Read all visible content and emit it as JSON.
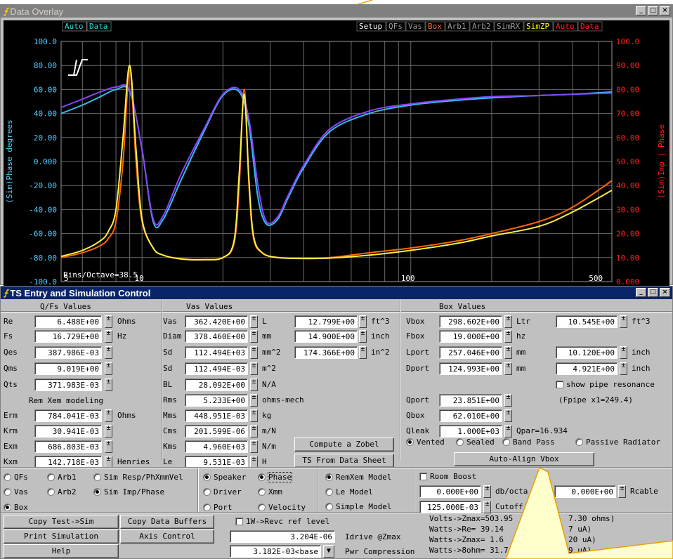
{
  "overlay": {
    "title": "Data Overlay",
    "logo": "JL",
    "top_tags_left": [
      "Auto",
      "Data"
    ],
    "top_tags_right": [
      {
        "label": "Setup",
        "color": "#ffffff"
      },
      {
        "label": "QFs",
        "color": "#a0a0a0"
      },
      {
        "label": "Vas",
        "color": "#a0a0a0"
      },
      {
        "label": "Box",
        "color": "#ff6633"
      },
      {
        "label": "Arb1",
        "color": "#a0a0a0"
      },
      {
        "label": "Arb2",
        "color": "#a0a0a0"
      },
      {
        "label": "SimRX",
        "color": "#a0a0a0"
      },
      {
        "label": "SimZP",
        "color": "#ffff00"
      },
      {
        "label": "Auto",
        "color": "#ff2020"
      },
      {
        "label": "Data",
        "color": "#ff2020"
      }
    ],
    "left_axis_label": "(Sim)Phase degrees",
    "right_axis_label": "(Sim)Imp | Phase",
    "bins_label": "Bins/Octave=38.5"
  },
  "chart_data": {
    "type": "line",
    "xscale": "log",
    "xlim": [
      5,
      560
    ],
    "x_ticks": [
      "5",
      "10",
      "100",
      "500"
    ],
    "ylim_left": [
      -100,
      100
    ],
    "left_ticks": [
      "100.0",
      "80.00",
      "60.00",
      "40.00",
      "20.00",
      "0.000",
      "-20.00",
      "-40.00",
      "-60.00",
      "-80.00",
      "-100.0"
    ],
    "ylim_right": [
      0,
      100
    ],
    "right_ticks": [
      "100.0",
      "90.00",
      "80.00",
      "70.00",
      "60.00",
      "50.00",
      "40.00",
      "30.00",
      "20.00",
      "10.00",
      "0.000"
    ],
    "grid": true,
    "series": [
      {
        "color": "#33bbee",
        "axis": "left",
        "x": [
          5,
          6,
          7,
          8,
          9,
          10,
          11,
          12,
          14,
          17,
          20,
          23,
          25,
          27,
          29,
          32,
          35,
          40,
          50,
          70,
          100,
          150,
          200,
          300,
          400,
          560
        ],
        "y": [
          40,
          47,
          54,
          60,
          58,
          10,
          -50,
          -48,
          -15,
          25,
          55,
          58,
          30,
          -30,
          -52,
          -48,
          -30,
          -5,
          25,
          40,
          47,
          51,
          53,
          55,
          56,
          58
        ]
      },
      {
        "color": "#8844ff",
        "axis": "left",
        "x": [
          5,
          6,
          7,
          8,
          9,
          10,
          11,
          12,
          14,
          17,
          20,
          23,
          25,
          27,
          29,
          32,
          35,
          40,
          50,
          70,
          100,
          150,
          200,
          300,
          400,
          560
        ],
        "y": [
          45,
          52,
          58,
          62,
          59,
          10,
          -48,
          -45,
          -10,
          27,
          56,
          60,
          35,
          -20,
          -50,
          -46,
          -28,
          -3,
          27,
          42,
          48,
          52,
          54,
          55,
          56,
          57
        ]
      },
      {
        "color": "#ff6600",
        "axis": "right",
        "x": [
          5,
          6,
          7,
          7.5,
          8,
          8.5,
          9,
          9.5,
          10,
          11,
          12,
          14,
          17,
          20,
          22,
          23,
          24,
          25,
          26,
          28,
          32,
          40,
          50,
          70,
          100,
          150,
          200,
          300,
          400,
          560
        ],
        "y": [
          10,
          12,
          15,
          18,
          25,
          50,
          88,
          50,
          25,
          14,
          11,
          9.5,
          9.2,
          10,
          16,
          40,
          80,
          40,
          18,
          12,
          10,
          9.8,
          10,
          12,
          14,
          17,
          20,
          25,
          31,
          42
        ]
      },
      {
        "color": "#ffee44",
        "axis": "right",
        "x": [
          5,
          6,
          7,
          7.5,
          8,
          8.5,
          9,
          9.5,
          10,
          11,
          12,
          14,
          17,
          20,
          22,
          23,
          24,
          25,
          26,
          28,
          32,
          40,
          50,
          70,
          100,
          150,
          200,
          300,
          400,
          560
        ],
        "y": [
          10.5,
          13,
          17,
          21,
          30,
          60,
          90,
          55,
          26,
          14,
          11,
          9.4,
          9.1,
          10,
          17,
          45,
          78,
          42,
          19,
          12,
          10,
          9.6,
          9.8,
          11,
          13,
          16,
          19,
          23,
          29,
          38
        ]
      }
    ]
  },
  "ts": {
    "title": "TS Entry and Simulation Control",
    "logo": "JL",
    "section_qfs": "Q/Fs Values",
    "section_vas": "Vas Values",
    "section_box": "Box Values",
    "col1": [
      {
        "label": "Re",
        "value": "6.488E+00",
        "unit": "Ohms"
      },
      {
        "label": "Fs",
        "value": "16.729E+00",
        "unit": "Hz"
      },
      {
        "label": "Qes",
        "value": "387.986E-03",
        "unit": ""
      },
      {
        "label": "Qms",
        "value": "9.019E+00",
        "unit": ""
      },
      {
        "label": "Qts",
        "value": "371.983E-03",
        "unit": ""
      }
    ],
    "rem_xem_heading": "Rem Xem modeling",
    "col1b": [
      {
        "label": "Erm",
        "value": "784.041E-03",
        "unit": "Ohms"
      },
      {
        "label": "Krm",
        "value": "30.941E-03",
        "unit": ""
      },
      {
        "label": "Exm",
        "value": "686.803E-03",
        "unit": ""
      },
      {
        "label": "Kxm",
        "value": "142.718E-03",
        "unit": "Henries"
      }
    ],
    "col2": [
      {
        "label": "Vas",
        "value": "362.420E+00",
        "unit": "L"
      },
      {
        "label": "Diam",
        "value": "378.460E+00",
        "unit": "mm"
      },
      {
        "label": "Sd",
        "value": "112.494E+03",
        "unit": "mm^2"
      },
      {
        "label": "Sd",
        "value": "112.494E-03",
        "unit": "m^2"
      },
      {
        "label": "BL",
        "value": "28.092E+00",
        "unit": "N/A"
      },
      {
        "label": "Rms",
        "value": "5.233E+00",
        "unit": "ohms-mech"
      },
      {
        "label": "Mms",
        "value": "448.951E-03",
        "unit": "kg"
      },
      {
        "label": "Cms",
        "value": "201.599E-06",
        "unit": "m/N"
      },
      {
        "label": "Kms",
        "value": "4.960E+03",
        "unit": "N/m"
      },
      {
        "label": "Le",
        "value": "9.531E-03",
        "unit": "H"
      }
    ],
    "col3": [
      {
        "value": "12.799E+00",
        "unit": "ft^3"
      },
      {
        "value": "14.900E+00",
        "unit": "inch"
      },
      {
        "value": "174.366E+00",
        "unit": "in^2"
      }
    ],
    "btn_zobel": "Compute a Zobel",
    "btn_ts_sheet": "TS From Data Sheet",
    "col4": [
      {
        "label": "Vbox",
        "value": "298.602E+00",
        "unit": "Ltr"
      },
      {
        "label": "Fbox",
        "value": "19.000E+00",
        "unit": "hz"
      },
      {
        "label": "Lport",
        "value": "257.046E+00",
        "unit": "mm"
      },
      {
        "label": "Dport",
        "value": "124.993E+00",
        "unit": "mm"
      }
    ],
    "col4b": [
      {
        "label": "Qport",
        "value": "23.851E+00",
        "unit": ""
      },
      {
        "label": "Qbox",
        "value": "62.010E+00",
        "unit": ""
      },
      {
        "label": "Qleak",
        "value": "1.000E+03",
        "unit": "Qpar=16.934"
      }
    ],
    "col5": [
      {
        "value": "10.545E+00",
        "unit": "ft^3"
      },
      {
        "value": "10.120E+00",
        "unit": "inch"
      },
      {
        "value": "4.921E+00",
        "unit": "inch"
      }
    ],
    "show_pipe": "show pipe resonance",
    "fpipe": "(Fpipe x1=249.4)",
    "box_types": [
      "Vented",
      "Sealed",
      "Band Pass",
      "Passive Radiator"
    ],
    "btn_autoalign": "Auto-Align Vbox",
    "plot_opts": [
      "QFs",
      "Arb1",
      "Sim Resp/PhXmmVel",
      "Vas",
      "Arb2",
      "Sim Imp/Phase",
      "Box"
    ],
    "src_opts": [
      "Speaker",
      "Phase",
      "Driver",
      "Xmm",
      "Port",
      "Velocity"
    ],
    "model_opts": [
      "RemXem Model",
      "Le Model",
      "Simple Model"
    ],
    "room_boost": "Room Boost",
    "rb_field1": "0.000E+00",
    "rb_unit1": "db/octa",
    "rb_field2": "125.000E-03",
    "rb_unit2": "Cutoff",
    "rcable_value": "0.000E+00",
    "rcable_label": "Rcable",
    "btn_copy_test": "Copy Test->Sim",
    "btn_copy_data": "Copy Data Buffers",
    "btn_print": "Print Simulation",
    "btn_axis": "Axis Control",
    "btn_help": "Help",
    "revc_label": "1W->Revc ref level",
    "idrive_value": "3.204E-06",
    "idrive_label": "Idrive @Zmax",
    "pwr_value": "3.182E-03<base",
    "pwr_label": "Pwr Compression",
    "watts": [
      "Volts->Zmax=503.95",
      "Watts->Re= 39.14",
      "Watts->Zmax= 1.6",
      "Watts->8ohm= 31.7"
    ],
    "watts_tail": [
      "7.30 ohms)",
      "7 uA)",
      "20 uA)",
      "9 uA)"
    ]
  }
}
